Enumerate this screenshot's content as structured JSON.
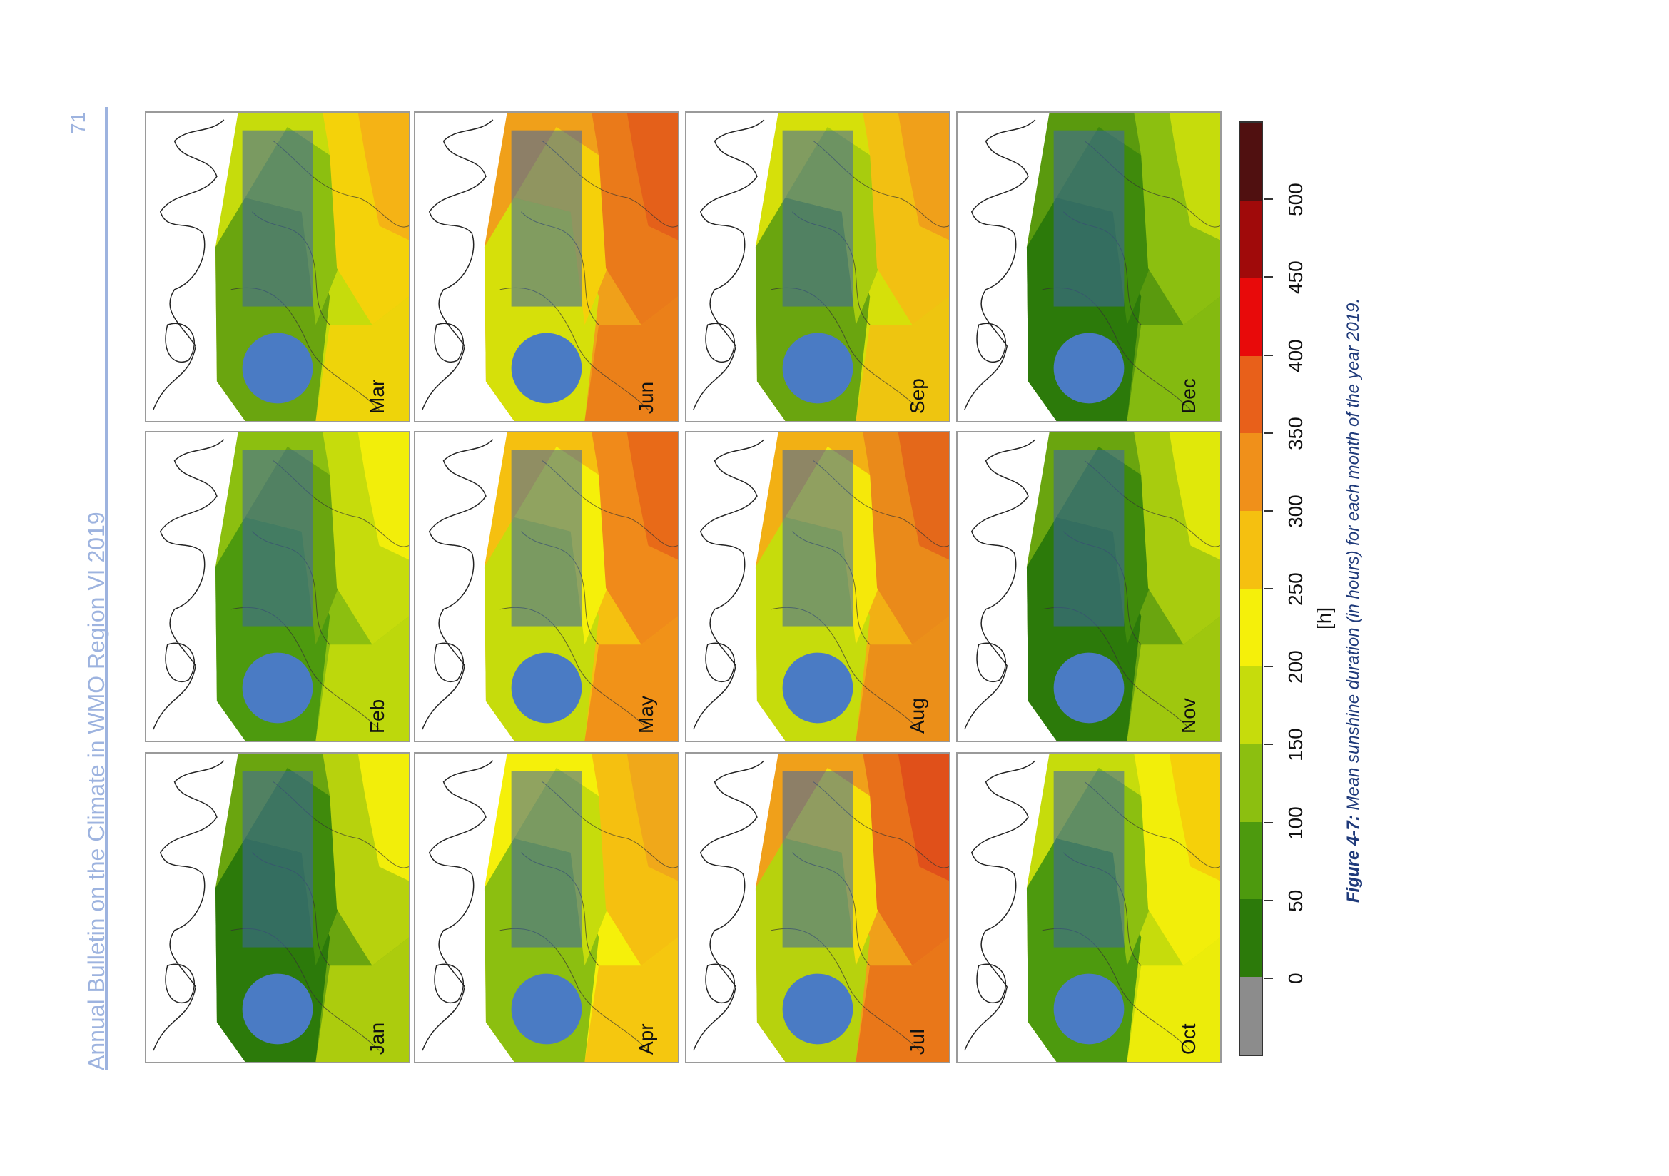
{
  "header": {
    "title": "Annual Bulletin on the Climate in WMO Region VI 2019",
    "page_number": "71"
  },
  "figure": {
    "caption_label": "Figure 4-7:",
    "caption_text": " Mean sunshine duration (in hours) for each month of the year 2019.",
    "panels": [
      {
        "month": "Jan",
        "colors": [
          "#2c7a0a",
          "#3f8a0c",
          "#6aa50f",
          "#b7d20d",
          "#f2ee0a"
        ]
      },
      {
        "month": "Feb",
        "colors": [
          "#4d9a0e",
          "#6aa50f",
          "#8cbf10",
          "#c6dc0c",
          "#f2ee0a"
        ]
      },
      {
        "month": "Mar",
        "colors": [
          "#6aa50f",
          "#8cbf10",
          "#c6dc0c",
          "#f4d20a",
          "#f5b315"
        ]
      },
      {
        "month": "Apr",
        "colors": [
          "#8cbf10",
          "#c6dc0c",
          "#f5f00a",
          "#f5c010",
          "#f0a81a"
        ]
      },
      {
        "month": "May",
        "colors": [
          "#c6dc0c",
          "#f5f00a",
          "#f5c010",
          "#f08a1a",
          "#e86a18"
        ]
      },
      {
        "month": "Jun",
        "colors": [
          "#d6e00a",
          "#f5d00a",
          "#f0a01a",
          "#ea7a1a",
          "#e4601a"
        ]
      },
      {
        "month": "Jul",
        "colors": [
          "#b7d20d",
          "#f5e00a",
          "#f0a01a",
          "#e8701a",
          "#e0501a"
        ]
      },
      {
        "month": "Aug",
        "colors": [
          "#c6dc0c",
          "#f5e80a",
          "#f2b014",
          "#ea8a1a",
          "#e4681a"
        ]
      },
      {
        "month": "Sep",
        "colors": [
          "#6aa50f",
          "#a8cc0e",
          "#d6e00a",
          "#f2c012",
          "#f0a01a"
        ]
      },
      {
        "month": "Oct",
        "colors": [
          "#4d9a0e",
          "#8cbf10",
          "#c6dc0c",
          "#f2ee0a",
          "#f5d00a"
        ]
      },
      {
        "month": "Nov",
        "colors": [
          "#2c7a0a",
          "#3f8a0c",
          "#6aa50f",
          "#a8cc0e",
          "#e0e80a"
        ]
      },
      {
        "month": "Dec",
        "colors": [
          "#2c7a0a",
          "#3f8a0c",
          "#5a9a0e",
          "#8cbf10",
          "#c6dc0c"
        ]
      }
    ],
    "legend": {
      "unit": "[h]",
      "ticks": [
        "0",
        "50",
        "100",
        "150",
        "200",
        "250",
        "300",
        "350",
        "400",
        "450",
        "500"
      ],
      "colors": [
        "#8c8c8c",
        "#2c7a0a",
        "#4d9a0e",
        "#8cbf10",
        "#c6dc0c",
        "#f5f00a",
        "#f5c010",
        "#f0901a",
        "#e8601a",
        "#e80a0a",
        "#a00a0a",
        "#501010"
      ]
    }
  }
}
